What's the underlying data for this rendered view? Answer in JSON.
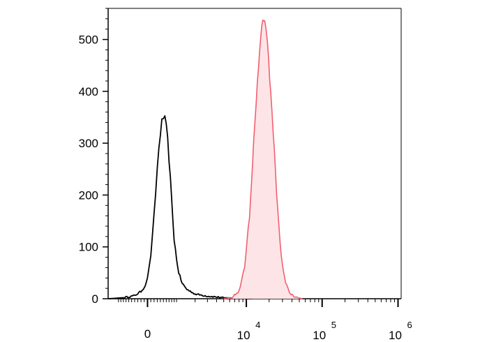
{
  "chart_data": {
    "type": "area",
    "title": "",
    "xlabel": "",
    "ylabel": "",
    "x_scale": "biexponential",
    "ylim": [
      0,
      560
    ],
    "y_ticks": [
      {
        "value": 0,
        "label": "0"
      },
      {
        "value": 100,
        "label": "100"
      },
      {
        "value": 200,
        "label": "200"
      },
      {
        "value": 300,
        "label": "300"
      },
      {
        "value": 400,
        "label": "400"
      },
      {
        "value": 500,
        "label": "500"
      }
    ],
    "x_ticks": [
      {
        "value": 0,
        "base": "0",
        "exp": ""
      },
      {
        "value": 10000,
        "base": "10",
        "exp": "4"
      },
      {
        "value": 100000,
        "base": "10",
        "exp": "5"
      },
      {
        "value": 1000000,
        "base": "10",
        "exp": "6"
      }
    ],
    "grid": false,
    "legend": "none",
    "series": [
      {
        "color": "#000000",
        "fill": "none",
        "points": [
          [
            -1500,
            0
          ],
          [
            -800,
            2
          ],
          [
            -400,
            6
          ],
          [
            -200,
            14
          ],
          [
            -100,
            22
          ],
          [
            -40,
            30
          ],
          [
            0,
            42
          ],
          [
            50,
            60
          ],
          [
            100,
            85
          ],
          [
            150,
            120
          ],
          [
            200,
            160
          ],
          [
            250,
            205
          ],
          [
            300,
            250
          ],
          [
            350,
            290
          ],
          [
            400,
            320
          ],
          [
            450,
            340
          ],
          [
            500,
            350
          ],
          [
            550,
            345
          ],
          [
            600,
            330
          ],
          [
            650,
            305
          ],
          [
            700,
            270
          ],
          [
            750,
            230
          ],
          [
            800,
            190
          ],
          [
            850,
            150
          ],
          [
            900,
            115
          ],
          [
            1000,
            75
          ],
          [
            1100,
            50
          ],
          [
            1250,
            30
          ],
          [
            1500,
            18
          ],
          [
            2000,
            9
          ],
          [
            3000,
            5
          ],
          [
            5000,
            2
          ],
          [
            8000,
            1
          ],
          [
            12000,
            0
          ]
        ]
      },
      {
        "color": "#f06070",
        "fill": "#fde4e7",
        "points": [
          [
            5000,
            0
          ],
          [
            6500,
            3
          ],
          [
            8000,
            15
          ],
          [
            9500,
            60
          ],
          [
            11000,
            160
          ],
          [
            12500,
            300
          ],
          [
            14000,
            420
          ],
          [
            15500,
            500
          ],
          [
            16500,
            545
          ],
          [
            17500,
            535
          ],
          [
            19000,
            490
          ],
          [
            21000,
            400
          ],
          [
            23500,
            280
          ],
          [
            26000,
            170
          ],
          [
            29000,
            80
          ],
          [
            33000,
            30
          ],
          [
            38000,
            10
          ],
          [
            45000,
            3
          ],
          [
            55000,
            0
          ]
        ]
      }
    ]
  }
}
